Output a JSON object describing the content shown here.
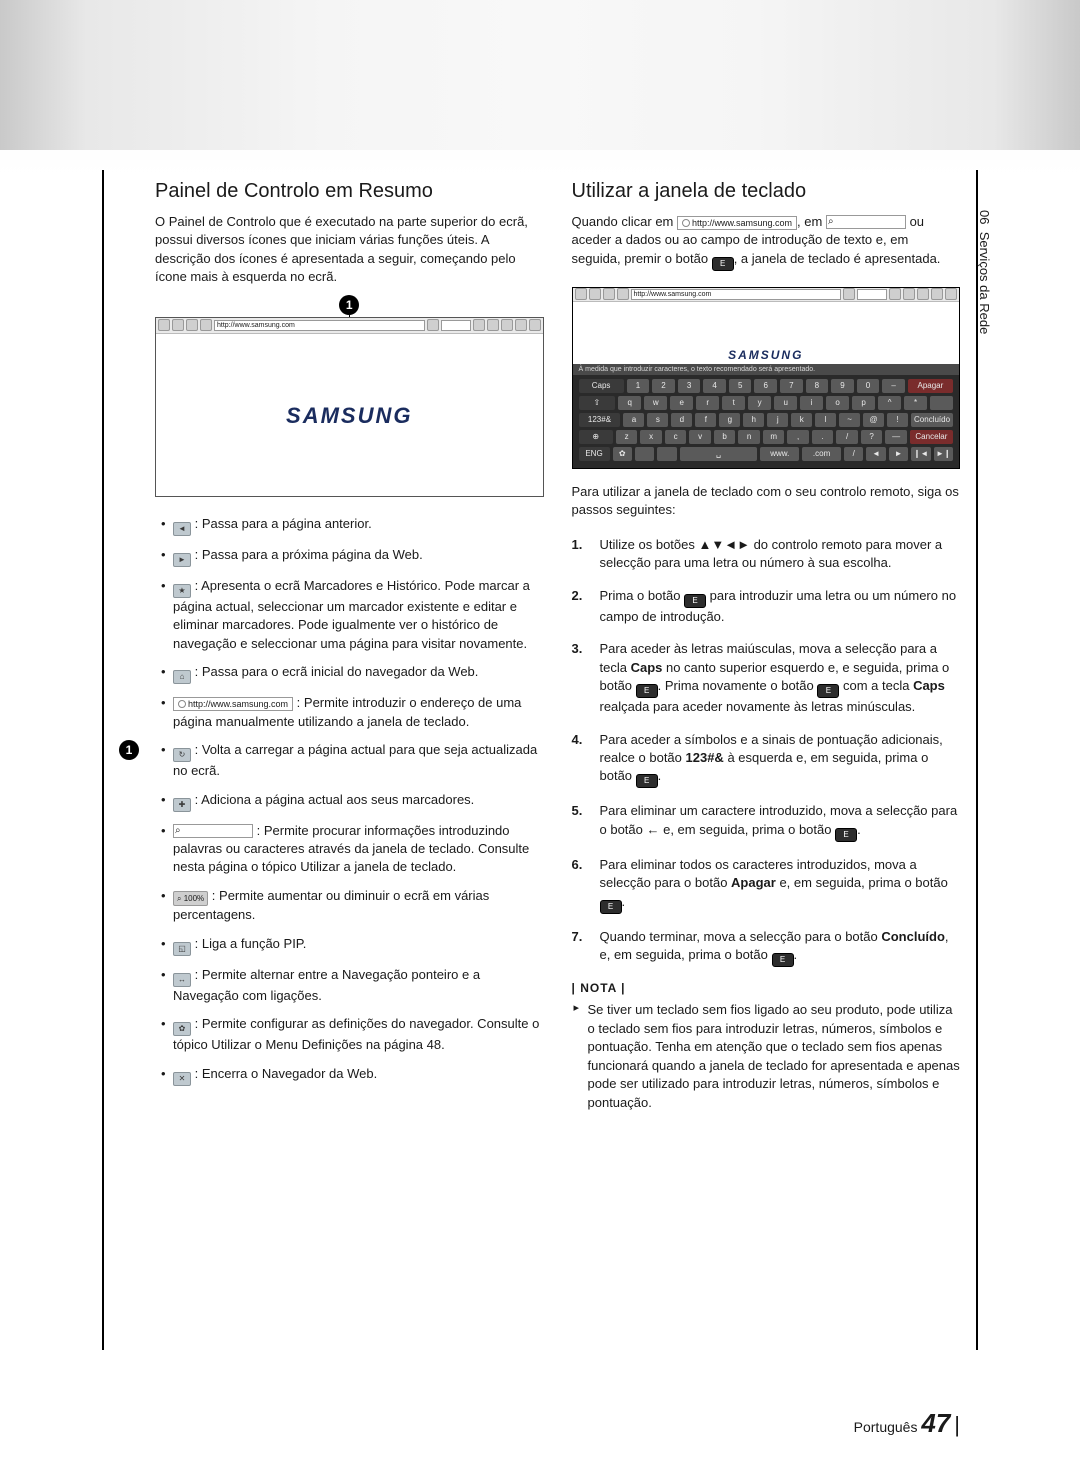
{
  "page": {
    "language_label": "Português",
    "number": "47",
    "side_tab_section": "06",
    "side_tab_label": "Serviços da Rede"
  },
  "left": {
    "title": "Painel de Controlo em Resumo",
    "intro": "O Painel de Controlo que é executado na parte superior do ecrã, possui diversos ícones que iniciam várias funções úteis. A descrição dos ícones é apresentada a seguir, começando pelo ícone mais à esquerda no ecrã.",
    "callout_num": "1",
    "figure": {
      "url": "http://www.samsung.com",
      "logo": "SAMSUNG"
    },
    "bullets": {
      "back": ": Passa para a página anterior.",
      "forward": ": Passa para a próxima página da Web.",
      "bookmarks": ": Apresenta o ecrã Marcadores e Histórico. Pode marcar a página actual, seleccionar um marcador existente e editar e eliminar marcadores. Pode igualmente ver o histórico de navegação e seleccionar uma página para visitar novamente.",
      "home": ": Passa para o ecrã inicial do navegador da Web.",
      "url_label": "http://www.samsung.com",
      "url_text": ": Permite introduzir o endereço de uma página manualmente utilizando a janela de teclado.",
      "refresh": ": Volta a carregar a página actual para que seja actualizada no ecrã.",
      "addbm": ": Adiciona a página actual aos seus marcadores.",
      "search": ": Permite procurar informações introduzindo palavras ou caracteres através da janela de teclado. Consulte nesta página o tópico Utilizar a janela de teclado.",
      "zoom_label": "100%",
      "zoom": ": Permite aumentar ou diminuir o ecrã em várias percentagens.",
      "pip": ": Liga a função PIP.",
      "navmode": ": Permite alternar entre a Navegação ponteiro e a Navegação com ligações.",
      "settings": ": Permite configurar as definições do navegador. Consulte o tópico Utilizar o Menu Definições na página 48.",
      "close": ": Encerra o Navegador da Web."
    }
  },
  "right": {
    "title": "Utilizar a janela de teclado",
    "intro_pre": "Quando clicar em ",
    "intro_url": "http://www.samsung.com",
    "intro_mid1": ", em ",
    "intro_mid2": " ou aceder a dados ou ao campo de introdução de texto e, em seguida, premir o botão ",
    "intro_end": ", a janela de teclado é apresentada.",
    "kb": {
      "url": "http://www.samsung.com",
      "hint": "À medida que introduzir caracteres, o texto recomendado será apresentado.",
      "logo": "SAMSUNG",
      "row1": [
        "Caps",
        "1",
        "2",
        "3",
        "4",
        "5",
        "6",
        "7",
        "8",
        "9",
        "0",
        "–",
        "Apagar"
      ],
      "row2": [
        "⇧",
        "q",
        "w",
        "e",
        "r",
        "t",
        "y",
        "u",
        "i",
        "o",
        "p",
        "^",
        "*",
        "  "
      ],
      "row3": [
        "123#&",
        "a",
        "s",
        "d",
        "f",
        "g",
        "h",
        "j",
        "k",
        "l",
        "~",
        "@",
        "!",
        "Concluído"
      ],
      "row4": [
        "⊕",
        "z",
        "x",
        "c",
        "v",
        "b",
        "n",
        "m",
        ",",
        ".",
        "/",
        "?",
        "—",
        "Cancelar"
      ],
      "row5": [
        "ENG",
        "✿",
        " ",
        " ",
        "␣",
        "www.",
        ".com",
        "/",
        "◄",
        "►",
        "❙◄",
        "►❙"
      ]
    },
    "steps_intro": "Para utilizar a janela de teclado com o seu controlo remoto, siga os passos seguintes:",
    "steps": {
      "s1": "Utilize os botões ▲▼◄► do controlo remoto para mover a selecção para uma letra ou número à sua escolha.",
      "s2a": "Prima o botão ",
      "s2b": " para introduzir uma letra ou um número no campo de introdução.",
      "s3a": "Para aceder às letras maiúsculas, mova a selecção para a tecla ",
      "s3b": " no canto superior esquerdo e, e seguida, prima o botão ",
      "s3c": ". Prima novamente o botão ",
      "s3d": " com a tecla ",
      "s3e": " realçada para aceder novamente às letras minúsculas.",
      "s4a": "Para aceder a símbolos e a sinais de pontuação adicionais, realce o botão ",
      "s4b": " à esquerda e, em seguida, prima o botão ",
      "s4c": ".",
      "s5a": "Para eliminar um caractere introduzido, mova a selecção para o botão ← e, em seguida, prima o botão ",
      "s5b": ".",
      "s6a": "Para eliminar todos os caracteres introduzidos, mova a selecção para o botão ",
      "s6b": " e, em seguida, prima o botão ",
      "s6c": ".",
      "s7a": "Quando terminar, mova a selecção para o botão ",
      "s7b": ", e, em seguida, prima o botão ",
      "s7c": "."
    },
    "strong": {
      "caps": "Caps",
      "sym": "123#&",
      "apagar": "Apagar",
      "concluido": "Concluído"
    },
    "nota_head": "| NOTA |",
    "nota_body": "Se tiver um teclado sem fios ligado ao seu produto, pode utiliza o teclado sem fios para introduzir letras, números, símbolos e pontuação. Tenha em atenção que o teclado sem fios apenas funcionará quando a janela de teclado for apresentada e apenas pode ser utilizado para introduzir letras, números, símbolos e pontuação."
  }
}
